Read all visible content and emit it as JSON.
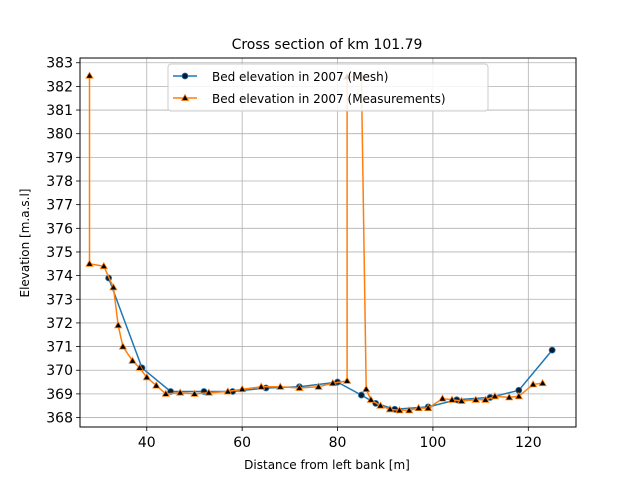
{
  "chart_data": {
    "type": "line",
    "title": "Cross section of km 101.79",
    "xlabel": "Distance from left bank [m]",
    "ylabel": "Elevation [m.a.s.l]",
    "xlim": [
      26,
      130
    ],
    "ylim": [
      367.6,
      383.2
    ],
    "xticks": [
      40,
      60,
      80,
      100,
      120
    ],
    "yticks": [
      368,
      369,
      370,
      371,
      372,
      373,
      374,
      375,
      376,
      377,
      378,
      379,
      380,
      381,
      382,
      383
    ],
    "grid": true,
    "legend_position": "top-center",
    "series": [
      {
        "name": "Bed elevation in 2007 (Mesh)",
        "color": "#1f77b4",
        "marker": "circle",
        "x": [
          32,
          39,
          45,
          52,
          58,
          65,
          72,
          80,
          85,
          88,
          92,
          99,
          105,
          112,
          118,
          125
        ],
        "y": [
          373.9,
          370.1,
          369.1,
          369.1,
          369.1,
          369.25,
          369.3,
          369.5,
          368.95,
          368.6,
          368.35,
          368.45,
          368.75,
          368.85,
          369.15,
          370.85
        ]
      },
      {
        "name": "Bed elevation in 2007 (Measurements)",
        "color": "#ff7f0e",
        "marker": "triangle",
        "x": [
          28,
          28,
          31,
          33,
          34,
          35,
          37,
          38.5,
          40,
          42,
          44,
          47,
          50,
          53,
          57,
          60,
          64,
          68,
          72,
          76,
          79,
          82,
          82,
          85,
          86,
          87,
          89,
          91,
          93,
          95,
          97,
          99,
          102,
          104,
          106,
          109,
          111,
          113,
          116,
          118,
          121,
          123
        ],
        "y": [
          382.45,
          374.5,
          374.4,
          373.5,
          371.9,
          371.0,
          370.4,
          370.1,
          369.7,
          369.35,
          369.0,
          369.05,
          369.0,
          369.05,
          369.1,
          369.2,
          369.3,
          369.3,
          369.25,
          369.3,
          369.45,
          369.55,
          382.4,
          382.4,
          369.2,
          368.75,
          368.5,
          368.35,
          368.3,
          368.3,
          368.4,
          368.4,
          368.8,
          368.75,
          368.7,
          368.75,
          368.75,
          368.9,
          368.85,
          368.9,
          369.4,
          369.45
        ]
      }
    ]
  }
}
